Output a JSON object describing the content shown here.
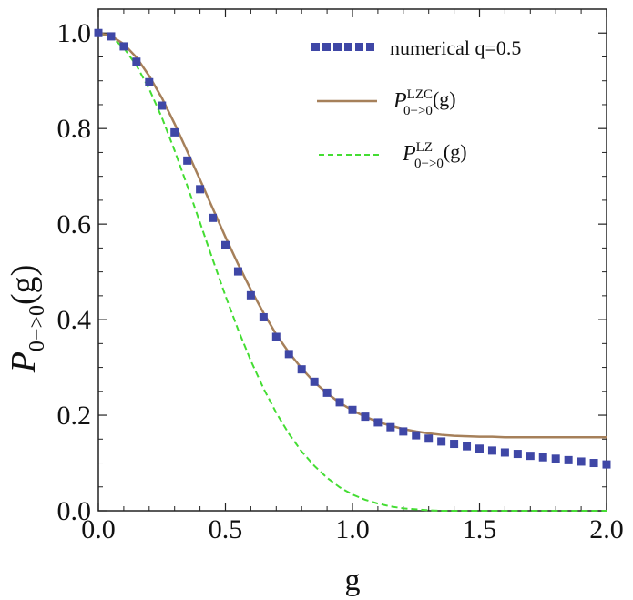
{
  "chart_data": {
    "type": "line",
    "xlabel": "g",
    "ylabel": {
      "symbol": "P",
      "subscript": "0−>0",
      "arg": "(g)"
    },
    "xlim": [
      0.0,
      2.0
    ],
    "ylim": [
      0.0,
      1.05
    ],
    "xticks": [
      "0.0",
      "0.5",
      "1.0",
      "1.5",
      "2.0"
    ],
    "yticks": [
      "0.0",
      "0.2",
      "0.4",
      "0.6",
      "0.8",
      "1.0"
    ],
    "xtick_values": [
      0.0,
      0.5,
      1.0,
      1.5,
      2.0
    ],
    "ytick_values": [
      0.0,
      0.2,
      0.4,
      0.6,
      0.8,
      1.0
    ],
    "legend_position": "top-right",
    "series": [
      {
        "name": "numerical q=0.5",
        "style": "square-markers",
        "color": "#3f47a6",
        "x": [
          0.0,
          0.05,
          0.1,
          0.15,
          0.2,
          0.25,
          0.3,
          0.35,
          0.4,
          0.45,
          0.5,
          0.55,
          0.6,
          0.65,
          0.7,
          0.75,
          0.8,
          0.85,
          0.9,
          0.95,
          1.0,
          1.05,
          1.1,
          1.15,
          1.2,
          1.25,
          1.3,
          1.35,
          1.4,
          1.45,
          1.5,
          1.55,
          1.6,
          1.65,
          1.7,
          1.75,
          1.8,
          1.85,
          1.9,
          1.95,
          2.0
        ],
        "y": [
          1.0,
          0.993,
          0.972,
          0.94,
          0.897,
          0.848,
          0.792,
          0.733,
          0.673,
          0.613,
          0.556,
          0.501,
          0.451,
          0.405,
          0.364,
          0.328,
          0.296,
          0.27,
          0.247,
          0.227,
          0.211,
          0.197,
          0.185,
          0.175,
          0.166,
          0.158,
          0.151,
          0.145,
          0.14,
          0.135,
          0.13,
          0.126,
          0.122,
          0.119,
          0.115,
          0.112,
          0.109,
          0.106,
          0.103,
          0.1,
          0.097
        ]
      },
      {
        "name": {
          "symbol": "P",
          "sup": "LZC",
          "sub": "0−>0",
          "arg": "(g)"
        },
        "style": "solid",
        "color": "#a6805a",
        "x": [
          0.0,
          0.05,
          0.1,
          0.15,
          0.2,
          0.25,
          0.3,
          0.35,
          0.4,
          0.45,
          0.5,
          0.55,
          0.6,
          0.65,
          0.7,
          0.75,
          0.8,
          0.85,
          0.9,
          0.95,
          1.0,
          1.05,
          1.1,
          1.15,
          1.2,
          1.25,
          1.3,
          1.35,
          1.4,
          1.45,
          1.5,
          1.55,
          1.6,
          1.65,
          1.7,
          1.75,
          1.8,
          1.85,
          1.9,
          1.95,
          2.0
        ],
        "y": [
          1.0,
          0.994,
          0.977,
          0.949,
          0.91,
          0.864,
          0.81,
          0.752,
          0.693,
          0.633,
          0.573,
          0.516,
          0.463,
          0.414,
          0.369,
          0.331,
          0.298,
          0.269,
          0.246,
          0.226,
          0.21,
          0.197,
          0.186,
          0.178,
          0.171,
          0.166,
          0.162,
          0.159,
          0.157,
          0.156,
          0.155,
          0.155,
          0.154,
          0.154,
          0.154,
          0.154,
          0.154,
          0.154,
          0.154,
          0.154,
          0.154
        ]
      },
      {
        "name": {
          "symbol": "P",
          "sup": "LZ",
          "sub": "0−>0",
          "arg": "(g)"
        },
        "style": "dashed",
        "color": "#44dd33",
        "x": [
          0.0,
          0.05,
          0.1,
          0.15,
          0.2,
          0.25,
          0.3,
          0.35,
          0.4,
          0.45,
          0.5,
          0.55,
          0.6,
          0.65,
          0.7,
          0.75,
          0.8,
          0.85,
          0.9,
          0.95,
          1.0,
          1.05,
          1.1,
          1.15,
          1.2,
          1.25,
          1.3,
          1.35,
          1.4,
          1.45,
          1.5,
          1.55,
          1.6,
          1.65,
          1.7,
          1.75,
          1.8,
          1.85,
          1.9,
          1.95,
          2.0
        ],
        "y": [
          1.0,
          0.992,
          0.969,
          0.932,
          0.883,
          0.823,
          0.754,
          0.68,
          0.603,
          0.526,
          0.45,
          0.379,
          0.314,
          0.256,
          0.205,
          0.161,
          0.124,
          0.094,
          0.069,
          0.049,
          0.034,
          0.023,
          0.015,
          0.009,
          0.005,
          0.003,
          0.001,
          0.0,
          0.0,
          0.0,
          0.0,
          0.0,
          0.0,
          0.0,
          0.0,
          0.0,
          0.0,
          0.0,
          0.0,
          0.0,
          0.0
        ]
      }
    ]
  }
}
